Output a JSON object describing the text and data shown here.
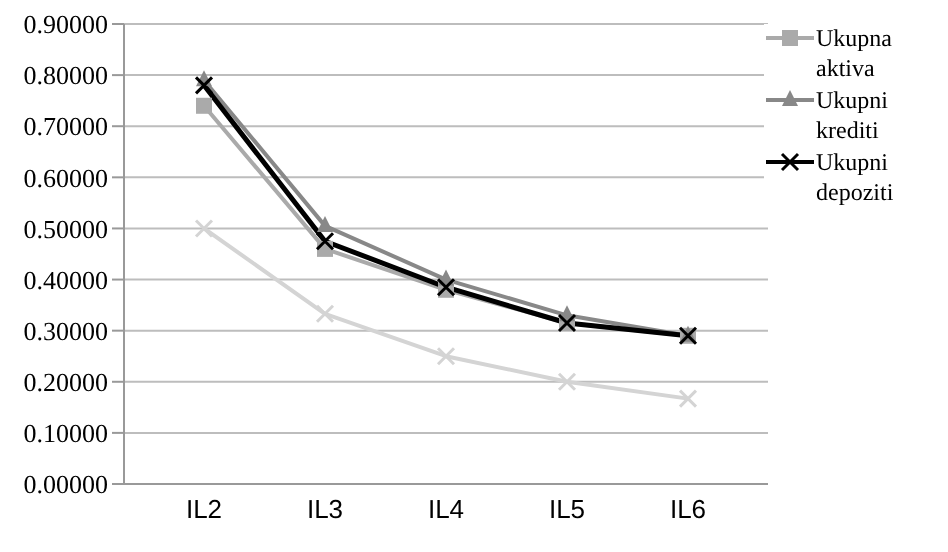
{
  "chart_data": {
    "type": "line",
    "categories": [
      "IL2",
      "IL3",
      "IL4",
      "IL5",
      "IL6"
    ],
    "series": [
      {
        "name": "Ukupna aktiva",
        "color": "#aaaaaa",
        "marker": "square",
        "values": [
          0.74,
          0.46,
          0.38,
          0.315,
          0.29
        ]
      },
      {
        "name": "Ukupni krediti",
        "color": "#888888",
        "marker": "triangle",
        "values": [
          0.79,
          0.505,
          0.4,
          0.33,
          0.29
        ]
      },
      {
        "name": "Ukupni depoziti",
        "color": "#000000",
        "marker": "cross",
        "values": [
          0.78,
          0.475,
          0.385,
          0.315,
          0.29
        ]
      },
      {
        "color": "#d4d4d4",
        "marker": "cross",
        "values": [
          0.5,
          0.333,
          0.25,
          0.2,
          0.167
        ]
      }
    ],
    "ylim": [
      0,
      0.9
    ],
    "yticks": [
      {
        "value": 0,
        "label": "0.00000"
      },
      {
        "value": 0.1,
        "label": "0.10000"
      },
      {
        "value": 0.2,
        "label": "0.20000"
      },
      {
        "value": 0.3,
        "label": "0.30000"
      },
      {
        "value": 0.4,
        "label": "0.40000"
      },
      {
        "value": 0.5,
        "label": "0.50000"
      },
      {
        "value": 0.6,
        "label": "0.60000"
      },
      {
        "value": 0.7,
        "label": "0.70000"
      },
      {
        "value": 0.8,
        "label": "0.80000"
      },
      {
        "value": 0.9,
        "label": "0.90000"
      }
    ],
    "grid": "y",
    "legend": "top right"
  }
}
